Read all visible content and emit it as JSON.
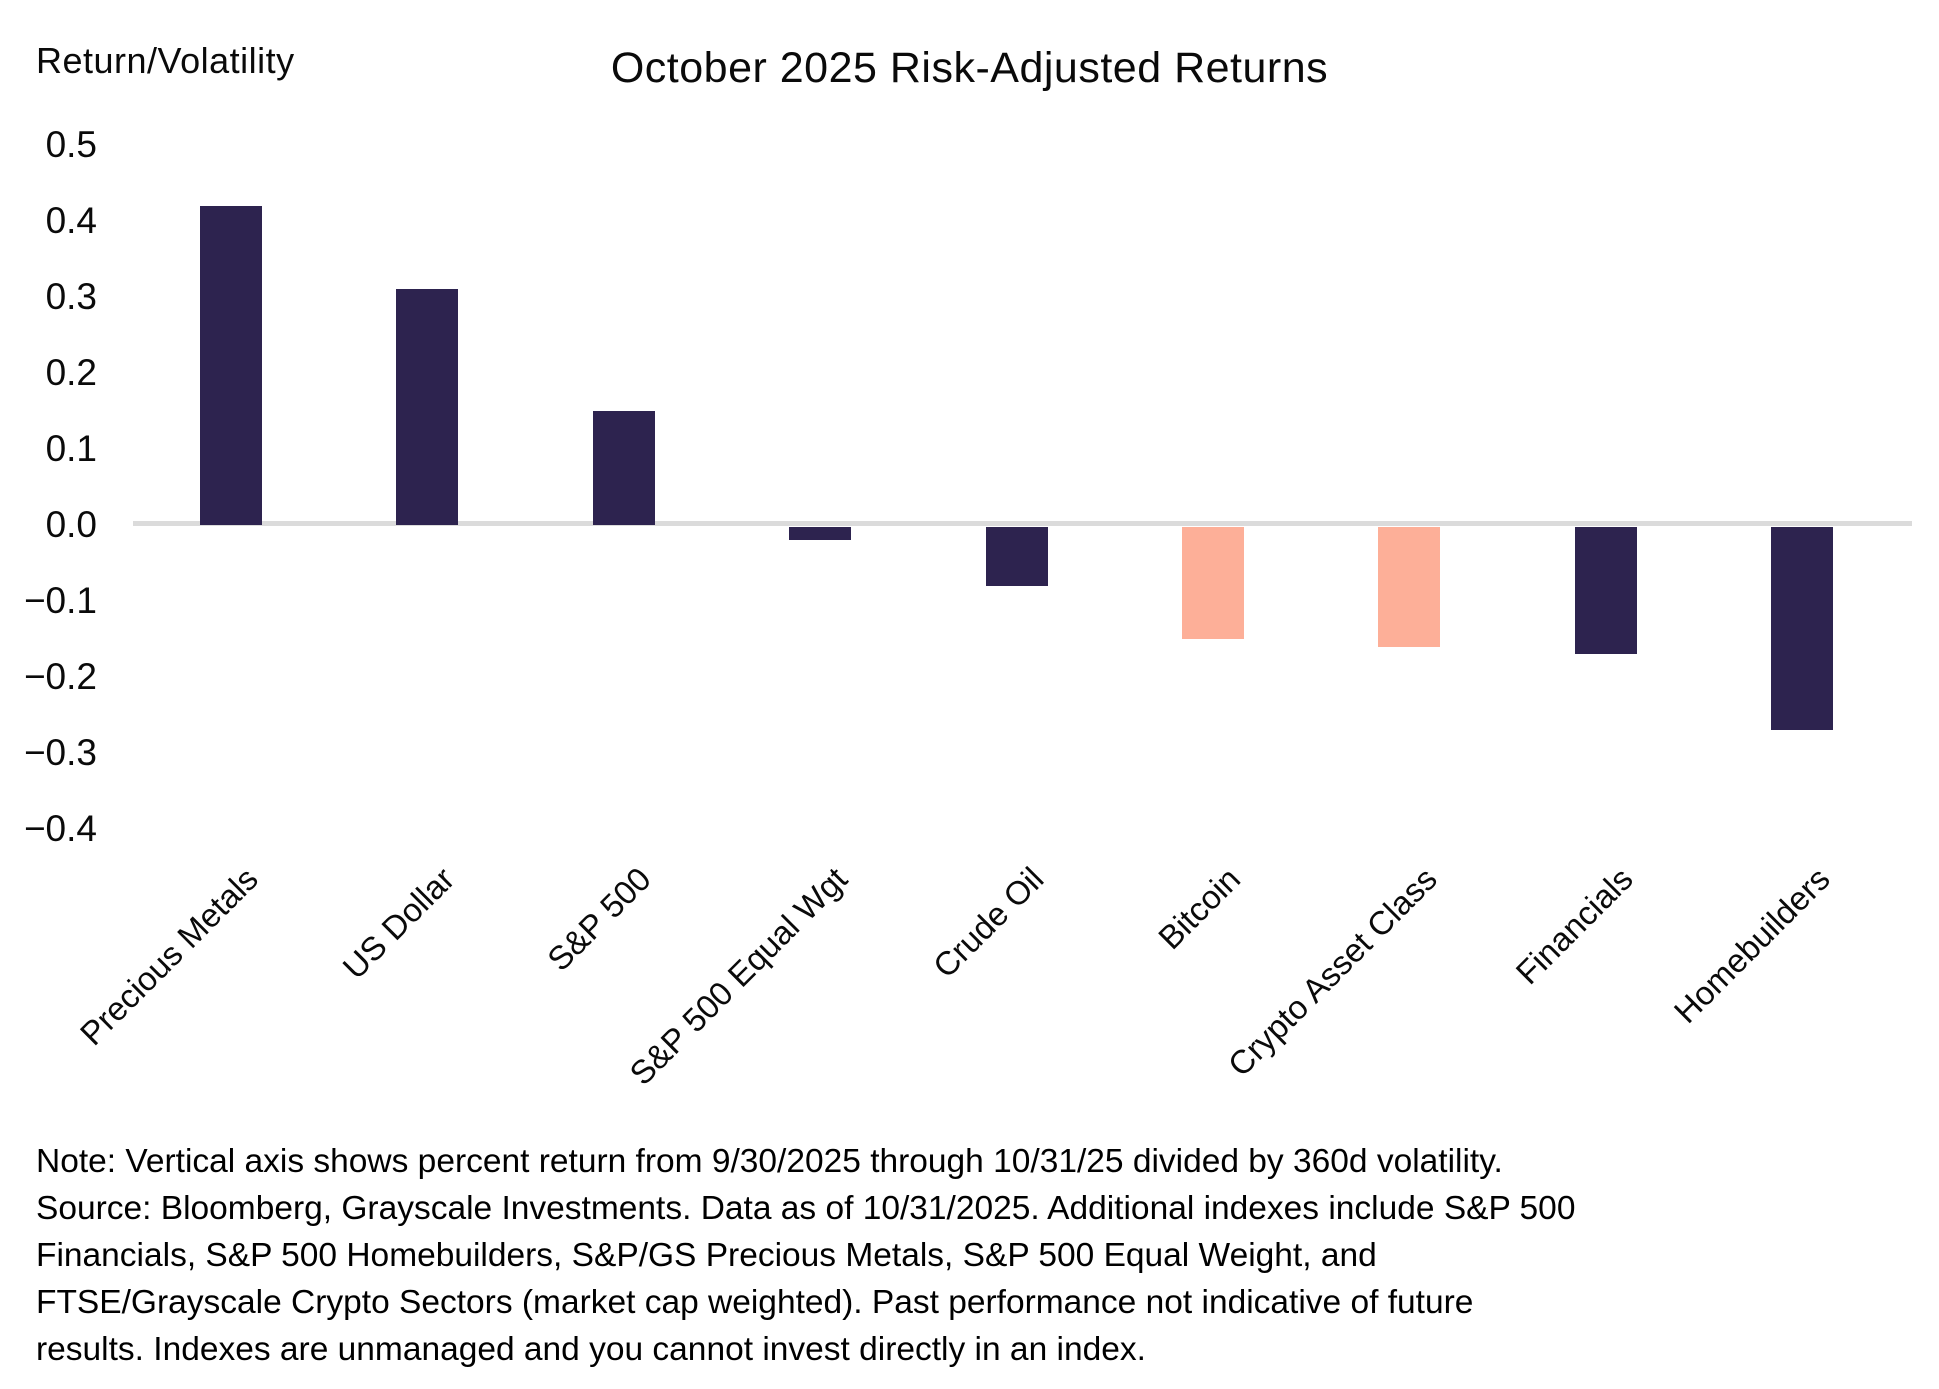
{
  "chart_data": {
    "type": "bar",
    "title": "October 2025 Risk-Adjusted Returns",
    "ylabel": "Return/Volatility",
    "xlabel": "",
    "categories": [
      "Precious Metals",
      "US Dollar",
      "S&P 500",
      "S&P 500 Equal Wgt",
      "Crude Oil",
      "Bitcoin",
      "Crypto Asset Class",
      "Financials",
      "Homebuilders"
    ],
    "values": [
      0.42,
      0.31,
      0.15,
      -0.02,
      -0.08,
      -0.15,
      -0.16,
      -0.17,
      -0.27
    ],
    "bar_color_keys": [
      "default",
      "default",
      "default",
      "default",
      "default",
      "highlight",
      "highlight",
      "default",
      "default"
    ],
    "palette": {
      "default": "#2D234F",
      "highlight": "#FDAF98",
      "axis_line": "#DBDBDB",
      "text": "#0a0a0a",
      "background": "#FFFFFF"
    },
    "ylim": [
      -0.4,
      0.5
    ],
    "yticks": [
      {
        "label": "0.5",
        "value": 0.5
      },
      {
        "label": "0.4",
        "value": 0.4
      },
      {
        "label": "0.3",
        "value": 0.3
      },
      {
        "label": "0.2",
        "value": 0.2
      },
      {
        "label": "0.1",
        "value": 0.1
      },
      {
        "label": "0.0",
        "value": 0.0
      },
      {
        "label": "−0.1",
        "value": -0.1
      },
      {
        "label": "−0.2",
        "value": -0.2
      },
      {
        "label": "−0.3",
        "value": -0.3
      },
      {
        "label": "−0.4",
        "value": -0.4
      }
    ],
    "grid": false,
    "legend": "none"
  },
  "note": {
    "lines": [
      "Note: Vertical axis shows percent return from 9/30/2025 through 10/31/25 divided by 360d volatility.",
      "Source: Bloomberg, Grayscale Investments. Data as of 10/31/2025. Additional indexes include S&P 500",
      "Financials, S&P 500 Homebuilders, S&P/GS Precious Metals, S&P 500 Equal Weight, and",
      "FTSE/Grayscale Crypto Sectors (market cap weighted). Past performance not indicative of future",
      "results. Indexes are unmanaged and you cannot invest directly in an index."
    ]
  }
}
